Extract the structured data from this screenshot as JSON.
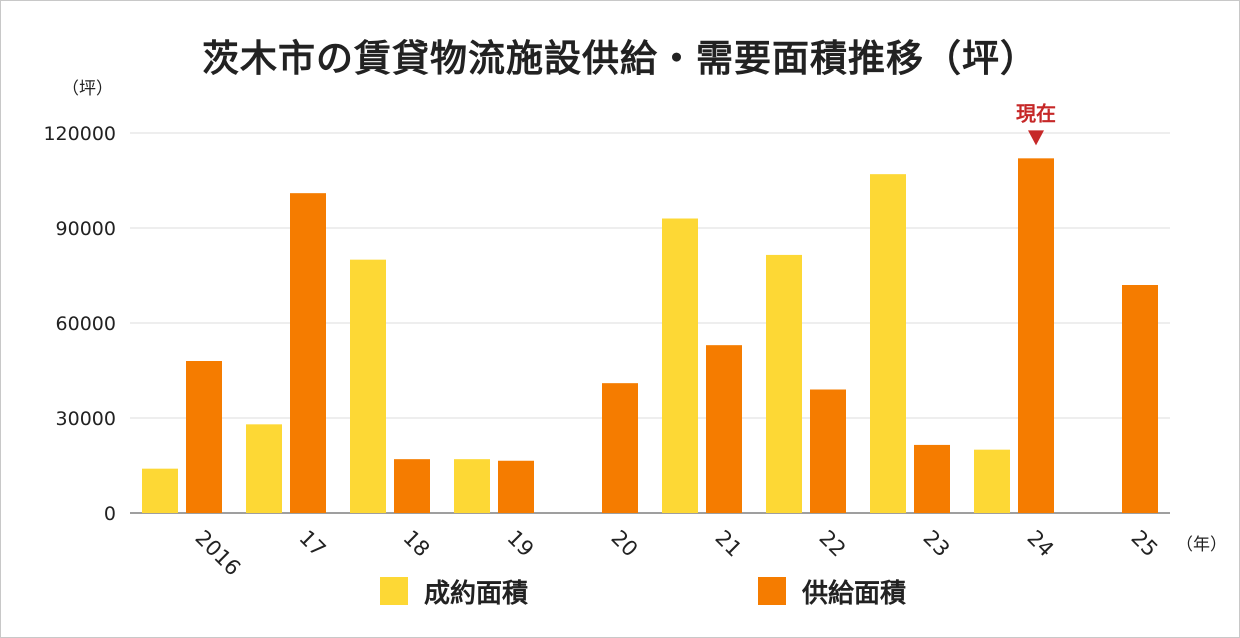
{
  "chart_data": {
    "type": "bar",
    "title": "茨木市の賃貸物流施設供給・需要面積推移（坪）",
    "ylabel": "（坪）",
    "xlabel": "（年）",
    "categories": [
      "2016",
      "17",
      "18",
      "19",
      "20",
      "21",
      "22",
      "23",
      "24",
      "25"
    ],
    "ylim": [
      0,
      120000
    ],
    "yticks": [
      "0",
      "30000",
      "60000",
      "90000",
      "120000"
    ],
    "grid": true,
    "legend_position": "bottom",
    "series": [
      {
        "name": "成約面積",
        "color": "#FDD835",
        "values": [
          14000,
          28000,
          80000,
          17000,
          null,
          93000,
          81500,
          107000,
          20000,
          null
        ]
      },
      {
        "name": "供給面積",
        "color": "#F57C00",
        "values": [
          48000,
          101000,
          17000,
          16500,
          41000,
          53000,
          39000,
          21500,
          112000,
          72000
        ]
      }
    ],
    "annotation": {
      "label": "現在",
      "category_index": 8,
      "color": "#C62828"
    }
  }
}
